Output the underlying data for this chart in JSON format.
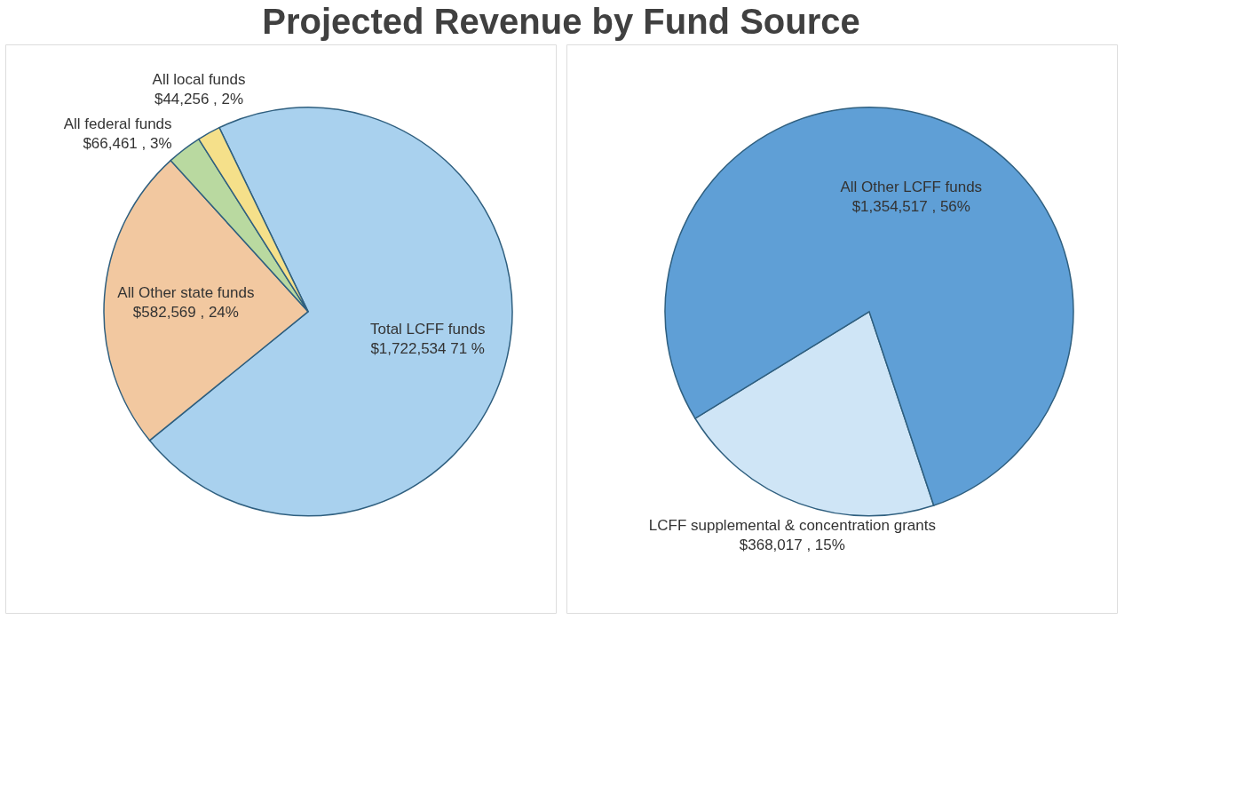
{
  "chart_data": [
    {
      "type": "pie",
      "title": "Projected Revenue by Fund Source",
      "categories": [
        "Total LCFF funds",
        "All Other state funds",
        "All federal funds",
        "All local funds"
      ],
      "values": [
        1722534,
        582569,
        66461,
        44256
      ],
      "colors": [
        "#a9d1ee",
        "#f2c8a0",
        "#b9d9a0",
        "#f5e08a"
      ],
      "value_labels": [
        "$1,722,534 71 %",
        "$582,569 , 24%",
        "$66,461 , 3%",
        "$44,256 , 2%"
      ]
    },
    {
      "type": "pie",
      "categories": [
        "LCFF supplemental & concentration grants",
        "All Other LCFF funds"
      ],
      "values": [
        368017,
        1354517
      ],
      "colors": [
        "#cfe5f6",
        "#5f9fd6"
      ],
      "value_labels": [
        "$368,017 , 15%",
        "$1,354,517 , 56%"
      ]
    }
  ]
}
